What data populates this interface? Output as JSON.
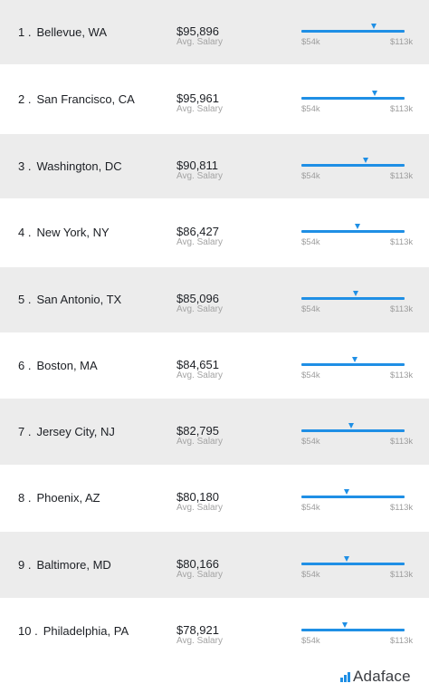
{
  "chart_data": {
    "type": "table",
    "scale_min": 54,
    "scale_max": 113,
    "scale_min_label": "$54k",
    "scale_max_label": "$113k",
    "salary_sublabel": "Avg. Salary",
    "rows": [
      {
        "rank": "1 .",
        "city": "Bellevue, WA",
        "salary": "$95,896",
        "value": 95.896
      },
      {
        "rank": "2 .",
        "city": "San Francisco, CA",
        "salary": "$95,961",
        "value": 95.961
      },
      {
        "rank": "3 .",
        "city": "Washington, DC",
        "salary": "$90,811",
        "value": 90.811
      },
      {
        "rank": "4 .",
        "city": "New York, NY",
        "salary": "$86,427",
        "value": 86.427
      },
      {
        "rank": "5 .",
        "city": "San Antonio, TX",
        "salary": "$85,096",
        "value": 85.096
      },
      {
        "rank": "6 .",
        "city": "Boston, MA",
        "salary": "$84,651",
        "value": 84.651
      },
      {
        "rank": "7 .",
        "city": "Jersey City, NJ",
        "salary": "$82,795",
        "value": 82.795
      },
      {
        "rank": "8 .",
        "city": "Phoenix, AZ",
        "salary": "$80,180",
        "value": 80.18
      },
      {
        "rank": "9 .",
        "city": "Baltimore, MD",
        "salary": "$80,166",
        "value": 80.166
      },
      {
        "rank": "10 .",
        "city": "Philadelphia, PA",
        "salary": "$78,921",
        "value": 78.921
      }
    ]
  },
  "brand": {
    "name": "Adaface",
    "icon": "bar-chart-logo-icon",
    "color": "#1f8fe5"
  }
}
